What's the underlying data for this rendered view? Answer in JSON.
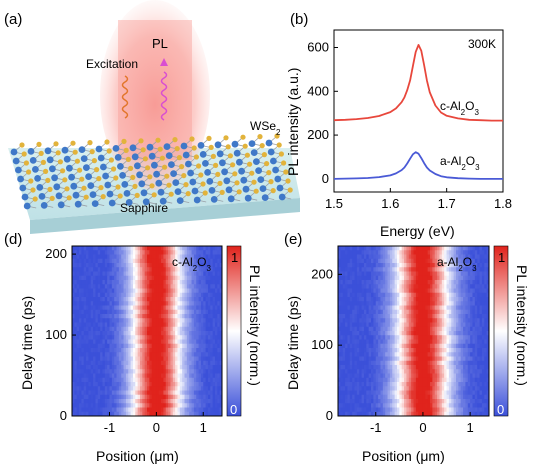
{
  "panels": {
    "a": {
      "label": "(a)",
      "excitation": "Excitation",
      "pl": "PL",
      "material": "WSe",
      "material_sub": "2",
      "substrate": "Sapphire"
    },
    "b": {
      "label": "(b)",
      "temperature": "300K"
    },
    "d": {
      "label": "(d)",
      "sample": "c-Al",
      "sample_sub": "2",
      "sample_mid": "O",
      "sample_sub2": "3"
    },
    "e": {
      "label": "(e)",
      "sample": "a-Al",
      "sample_sub": "2",
      "sample_mid": "O",
      "sample_sub2": "3"
    }
  },
  "colorbar": {
    "title": "PL intensity (norm.)",
    "max_label": "1",
    "min_label": "0"
  },
  "chart_data": [
    {
      "id": "b",
      "type": "line",
      "xlabel": "Energy (eV)",
      "ylabel": "PL intensity (a.u.)",
      "xlim": [
        1.5,
        1.8
      ],
      "ylim": [
        -60,
        680
      ],
      "xticks": [
        1.5,
        1.6,
        1.7,
        1.8
      ],
      "yticks": [
        0,
        200,
        400,
        600
      ],
      "series": [
        {
          "name": "c-Al2O3",
          "label": "c-Al",
          "label_sub": "2",
          "label_mid": "O",
          "label_sub2": "3",
          "color": "#e8473c",
          "x": [
            1.5,
            1.52,
            1.54,
            1.56,
            1.58,
            1.6,
            1.61,
            1.62,
            1.625,
            1.63,
            1.635,
            1.64,
            1.645,
            1.65,
            1.655,
            1.66,
            1.665,
            1.67,
            1.68,
            1.69,
            1.7,
            1.72,
            1.74,
            1.76,
            1.78,
            1.8
          ],
          "y": [
            268,
            270,
            273,
            278,
            287,
            305,
            322,
            350,
            372,
            405,
            450,
            515,
            580,
            612,
            585,
            520,
            450,
            395,
            335,
            303,
            288,
            276,
            270,
            268,
            266,
            266
          ]
        },
        {
          "name": "a-Al2O3",
          "label": "a-Al",
          "label_sub": "2",
          "label_mid": "O",
          "label_sub2": "3",
          "color": "#4a5ad6",
          "x": [
            1.5,
            1.52,
            1.54,
            1.56,
            1.58,
            1.6,
            1.61,
            1.62,
            1.625,
            1.63,
            1.635,
            1.64,
            1.645,
            1.65,
            1.655,
            1.66,
            1.665,
            1.67,
            1.68,
            1.69,
            1.7,
            1.72,
            1.74,
            1.76,
            1.78,
            1.8
          ],
          "y": [
            0,
            1,
            2,
            4,
            8,
            16,
            25,
            40,
            52,
            70,
            92,
            112,
            122,
            115,
            95,
            72,
            52,
            38,
            22,
            12,
            7,
            3,
            1,
            0,
            0,
            0
          ]
        }
      ]
    },
    {
      "id": "d",
      "type": "heatmap",
      "xlabel": "Position (μm)",
      "ylabel": "Delay time (ps)",
      "xlim": [
        -1.8,
        1.4
      ],
      "ylim": [
        0,
        210
      ],
      "xticks": [
        -1,
        0,
        1
      ],
      "yticks": [
        0,
        100,
        200
      ],
      "center_um": 0.0,
      "fwhm_um": 0.9
    },
    {
      "id": "e",
      "type": "heatmap",
      "xlabel": "Position (μm)",
      "ylabel": "Delay time (ps)",
      "xlim": [
        -1.8,
        1.4
      ],
      "ylim": [
        0,
        240
      ],
      "xticks": [
        -1,
        0,
        1
      ],
      "yticks": [
        0,
        100,
        200
      ],
      "center_um": 0.0,
      "fwhm_um": 0.95
    }
  ]
}
